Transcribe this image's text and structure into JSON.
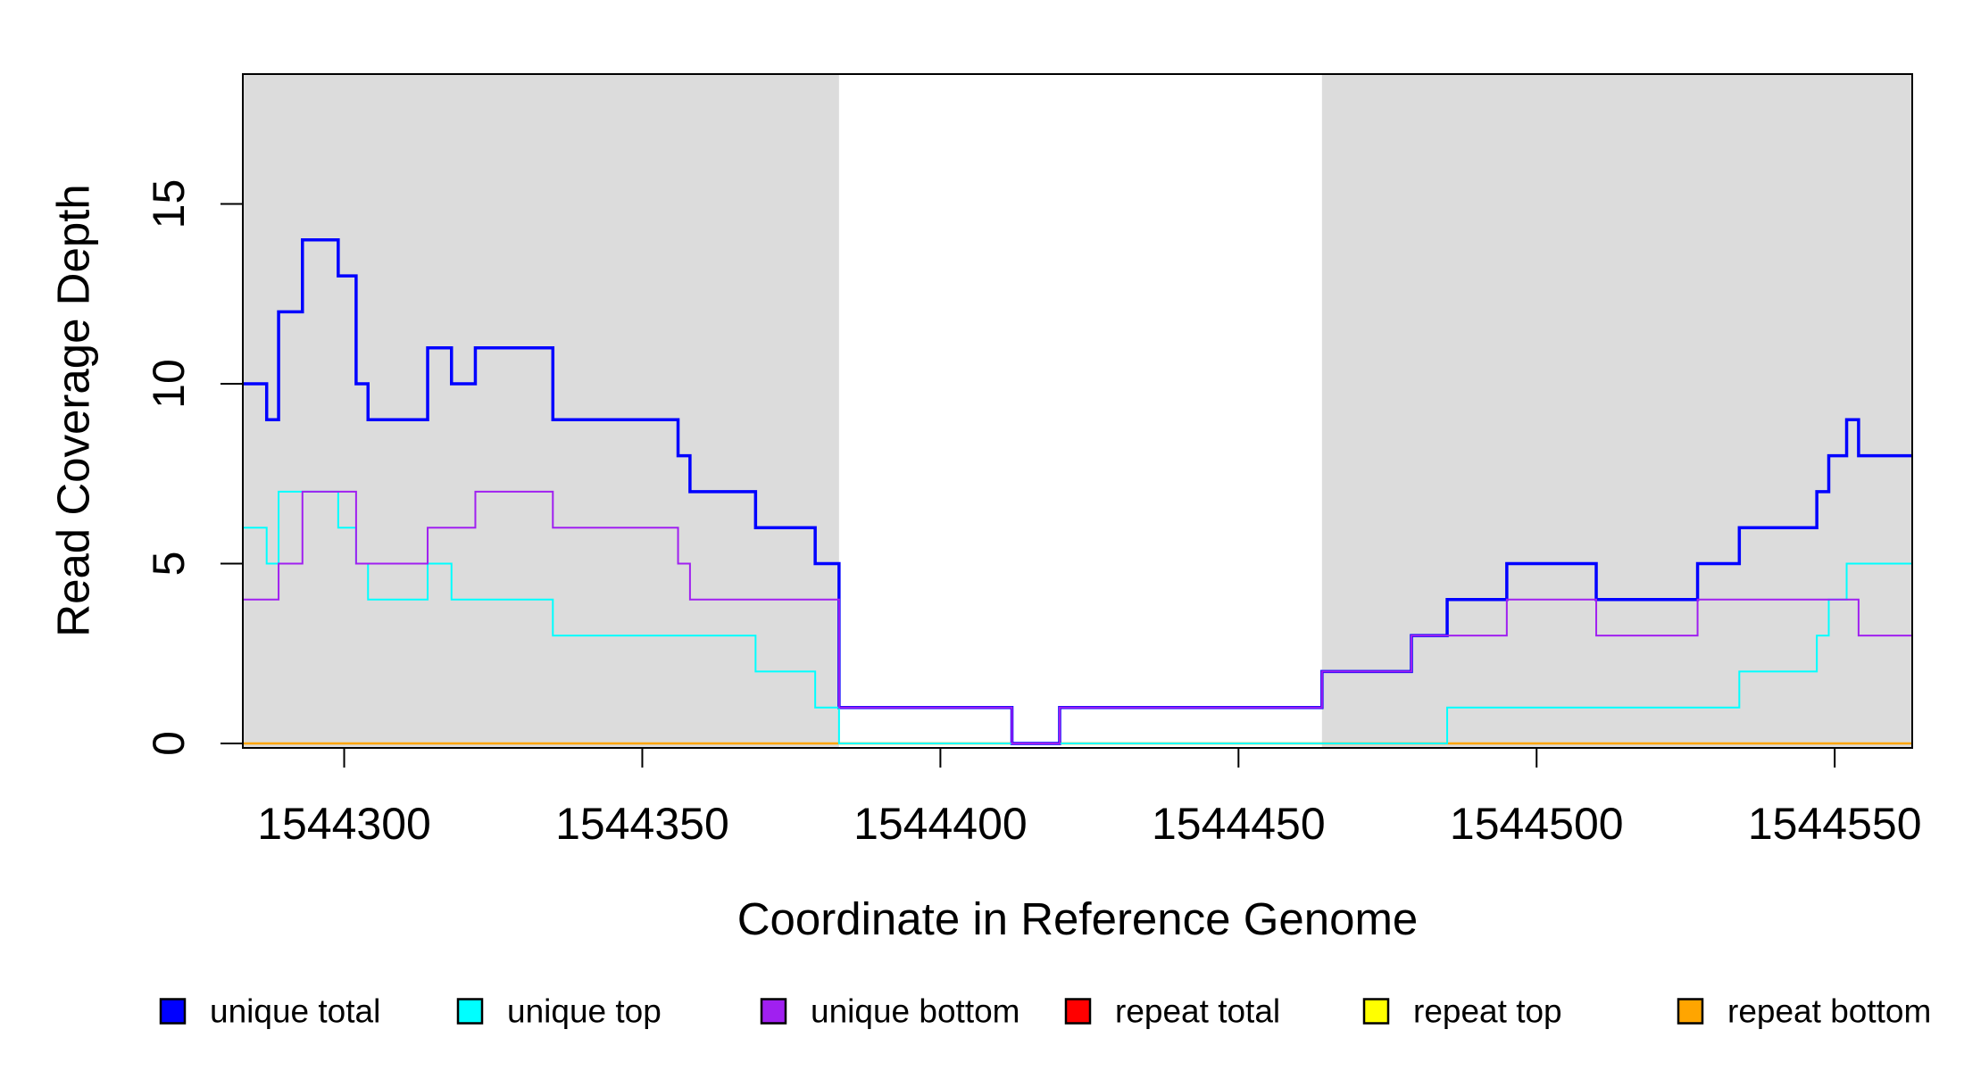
{
  "chart_data": {
    "type": "line",
    "style": "step",
    "title": "",
    "xlabel": "Coordinate in Reference Genome",
    "ylabel": "Read Coverage Depth",
    "xlim": [
      1544283,
      1544563
    ],
    "ylim": [
      0,
      18.6
    ],
    "grid": false,
    "legend_position": "bottom",
    "x_ticks": [
      1544300,
      1544350,
      1544400,
      1544450,
      1544500,
      1544550
    ],
    "x_tick_labels": [
      "1544300",
      "1544350",
      "1544400",
      "1544450",
      "1544500",
      "1544550"
    ],
    "y_ticks": [
      0,
      5,
      10,
      15
    ],
    "y_tick_labels": [
      "0",
      "5",
      "10",
      "15"
    ],
    "shaded_regions": [
      {
        "from": 1544283,
        "to": 1544383,
        "color": "#DCDCDC"
      },
      {
        "from": 1544464,
        "to": 1544563,
        "color": "#DCDCDC"
      }
    ],
    "series": [
      {
        "name": "unique total",
        "color": "#0000FF",
        "line_width": 3.5,
        "steps": [
          [
            1544283,
            10
          ],
          [
            1544287,
            9
          ],
          [
            1544289,
            12
          ],
          [
            1544293,
            14
          ],
          [
            1544299,
            13
          ],
          [
            1544302,
            10
          ],
          [
            1544304,
            9
          ],
          [
            1544314,
            11
          ],
          [
            1544318,
            10
          ],
          [
            1544322,
            11
          ],
          [
            1544335,
            9
          ],
          [
            1544356,
            8
          ],
          [
            1544358,
            7
          ],
          [
            1544369,
            6
          ],
          [
            1544379,
            5
          ],
          [
            1544383,
            1
          ],
          [
            1544412,
            0
          ],
          [
            1544420,
            1
          ],
          [
            1544464,
            2
          ],
          [
            1544479,
            3
          ],
          [
            1544485,
            4
          ],
          [
            1544495,
            5
          ],
          [
            1544510,
            4
          ],
          [
            1544527,
            5
          ],
          [
            1544534,
            6
          ],
          [
            1544547,
            7
          ],
          [
            1544549,
            8
          ],
          [
            1544552,
            9
          ],
          [
            1544554,
            8
          ]
        ]
      },
      {
        "name": "unique top",
        "color": "#00FFFF",
        "line_width": 2,
        "steps": [
          [
            1544283,
            6
          ],
          [
            1544287,
            5
          ],
          [
            1544289,
            7
          ],
          [
            1544299,
            6
          ],
          [
            1544302,
            5
          ],
          [
            1544304,
            4
          ],
          [
            1544314,
            5
          ],
          [
            1544318,
            4
          ],
          [
            1544335,
            3
          ],
          [
            1544369,
            2
          ],
          [
            1544379,
            1
          ],
          [
            1544383,
            0
          ],
          [
            1544485,
            1
          ],
          [
            1544534,
            2
          ],
          [
            1544547,
            3
          ],
          [
            1544549,
            4
          ],
          [
            1544552,
            5
          ]
        ]
      },
      {
        "name": "unique bottom",
        "color": "#A020F0",
        "line_width": 2,
        "steps": [
          [
            1544283,
            4
          ],
          [
            1544289,
            5
          ],
          [
            1544293,
            7
          ],
          [
            1544302,
            5
          ],
          [
            1544314,
            6
          ],
          [
            1544322,
            7
          ],
          [
            1544335,
            6
          ],
          [
            1544356,
            5
          ],
          [
            1544358,
            4
          ],
          [
            1544383,
            1
          ],
          [
            1544412,
            0
          ],
          [
            1544420,
            1
          ],
          [
            1544464,
            2
          ],
          [
            1544479,
            3
          ],
          [
            1544495,
            4
          ],
          [
            1544510,
            3
          ],
          [
            1544527,
            4
          ],
          [
            1544554,
            3
          ]
        ]
      },
      {
        "name": "repeat total",
        "color": "#FF0000",
        "line_width": 2,
        "steps": [
          [
            1544283,
            0
          ]
        ]
      },
      {
        "name": "repeat top",
        "color": "#FFFF00",
        "line_width": 2,
        "steps": [
          [
            1544283,
            0
          ]
        ]
      },
      {
        "name": "repeat bottom",
        "color": "#FFA500",
        "line_width": 2.5,
        "steps": [
          [
            1544283,
            0
          ]
        ]
      }
    ],
    "draw_order": [
      "repeat total",
      "repeat top",
      "repeat bottom",
      "unique total",
      "unique top",
      "unique bottom"
    ],
    "legend": {
      "entries": [
        {
          "label": "unique total",
          "color": "#0000FF"
        },
        {
          "label": "unique top",
          "color": "#00FFFF"
        },
        {
          "label": "unique bottom",
          "color": "#A020F0"
        },
        {
          "label": "repeat total",
          "color": "#FF0000"
        },
        {
          "label": "repeat top",
          "color": "#FFFF00"
        },
        {
          "label": "repeat bottom",
          "color": "#FFA500"
        }
      ]
    }
  },
  "colors": {
    "background": "#FFFFFF",
    "panel_border": "#000000",
    "shaded_band": "#DCDCDC",
    "tick": "#000000"
  }
}
